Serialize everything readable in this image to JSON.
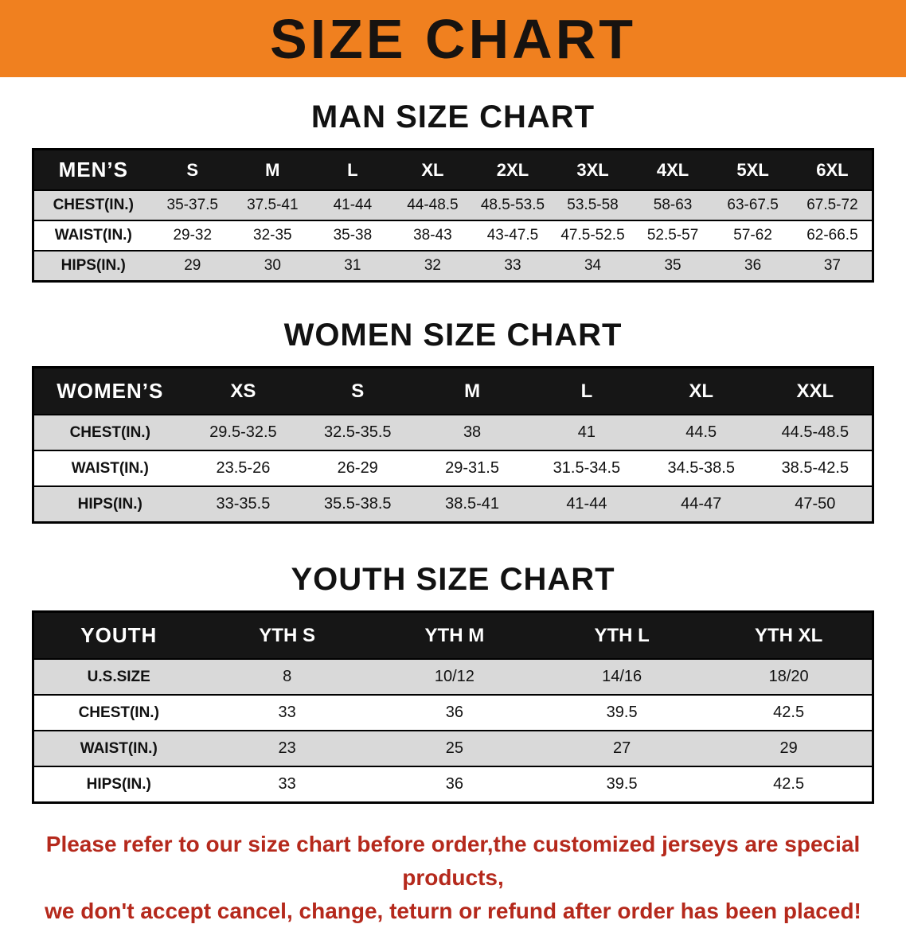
{
  "banner": {
    "title": "SIZE CHART",
    "bg_color": "#f0801f",
    "text_color": "#171310"
  },
  "sections": [
    {
      "heading": "MAN SIZE CHART",
      "table": {
        "header": [
          "MEN’S",
          "S",
          "M",
          "L",
          "XL",
          "2XL",
          "3XL",
          "4XL",
          "5XL",
          "6XL"
        ],
        "rows": [
          [
            "CHEST(IN.)",
            "35-37.5",
            "37.5-41",
            "41-44",
            "44-48.5",
            "48.5-53.5",
            "53.5-58",
            "58-63",
            "63-67.5",
            "67.5-72"
          ],
          [
            "WAIST(IN.)",
            "29-32",
            "32-35",
            "35-38",
            "38-43",
            "43-47.5",
            "47.5-52.5",
            "52.5-57",
            "57-62",
            "62-66.5"
          ],
          [
            "HIPS(IN.)",
            "29",
            "30",
            "31",
            "32",
            "33",
            "34",
            "35",
            "36",
            "37"
          ]
        ]
      }
    },
    {
      "heading": "WOMEN SIZE CHART",
      "table": {
        "header": [
          "WOMEN’S",
          "XS",
          "S",
          "M",
          "L",
          "XL",
          "XXL"
        ],
        "rows": [
          [
            "CHEST(IN.)",
            "29.5-32.5",
            "32.5-35.5",
            "38",
            "41",
            "44.5",
            "44.5-48.5"
          ],
          [
            "WAIST(IN.)",
            "23.5-26",
            "26-29",
            "29-31.5",
            "31.5-34.5",
            "34.5-38.5",
            "38.5-42.5"
          ],
          [
            "HIPS(IN.)",
            "33-35.5",
            "35.5-38.5",
            "38.5-41",
            "41-44",
            "44-47",
            "47-50"
          ]
        ]
      }
    },
    {
      "heading": "YOUTH SIZE CHART",
      "table": {
        "header": [
          "YOUTH",
          "YTH S",
          "YTH M",
          "YTH L",
          "YTH XL"
        ],
        "rows": [
          [
            "U.S.SIZE",
            "8",
            "10/12",
            "14/16",
            "18/20"
          ],
          [
            "CHEST(IN.)",
            "33",
            "36",
            "39.5",
            "42.5"
          ],
          [
            "WAIST(IN.)",
            "23",
            "25",
            "27",
            "29"
          ],
          [
            "HIPS(IN.)",
            "33",
            "36",
            "39.5",
            "42.5"
          ]
        ]
      }
    }
  ],
  "footer": {
    "line1": "Please refer to our size chart before order,the customized jerseys are special products,",
    "line2": "we don't accept cancel, change, teturn or refund after order has been placed!"
  }
}
